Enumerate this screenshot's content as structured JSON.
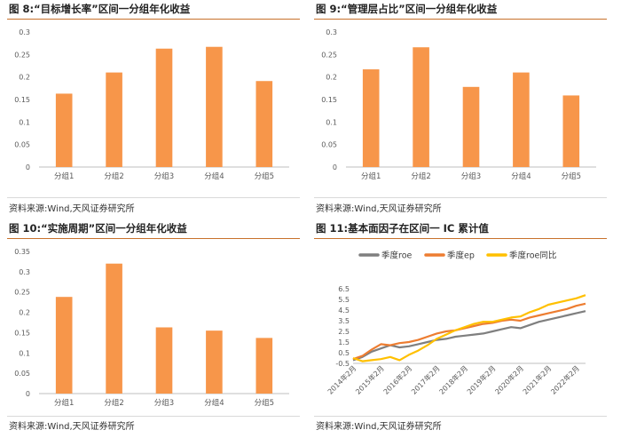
{
  "panels": [
    {
      "title": "图 8:“目标增长率”区间一分组年化收益",
      "source": "资料来源:Wind,天风证券研究所"
    },
    {
      "title": "图 9:“管理层占比”区间一分组年化收益",
      "source": "资料来源:Wind,天风证券研究所"
    },
    {
      "title": "图 10:“实施周期”区间一分组年化收益",
      "source": "资料来源:Wind,天风证券研究所"
    },
    {
      "title": "图 11:基本面因子在区间一 IC 累计值",
      "source": "资料来源:Wind,天风证券研究所"
    }
  ],
  "chart_data": [
    {
      "type": "bar",
      "categories": [
        "分组1",
        "分组2",
        "分组3",
        "分组4",
        "分组5"
      ],
      "values": [
        0.163,
        0.21,
        0.263,
        0.267,
        0.191
      ],
      "ylim": [
        0,
        0.3
      ],
      "yticks": [
        "0",
        "0.05",
        "0.1",
        "0.15",
        "0.2",
        "0.25",
        "0.3"
      ],
      "color": "#F7964A",
      "grid": false
    },
    {
      "type": "bar",
      "categories": [
        "分组1",
        "分组2",
        "分组3",
        "分组4",
        "分组5"
      ],
      "values": [
        0.217,
        0.266,
        0.178,
        0.21,
        0.159
      ],
      "ylim": [
        0,
        0.3
      ],
      "yticks": [
        "0",
        "0.05",
        "0.1",
        "0.15",
        "0.2",
        "0.25",
        "0.3"
      ],
      "color": "#F7964A",
      "grid": false
    },
    {
      "type": "bar",
      "categories": [
        "分组1",
        "分组2",
        "分组3",
        "分组4",
        "分组5"
      ],
      "values": [
        0.238,
        0.32,
        0.163,
        0.155,
        0.137
      ],
      "ylim": [
        0,
        0.35
      ],
      "yticks": [
        "0",
        "0.05",
        "0.1",
        "0.15",
        "0.2",
        "0.25",
        "0.3",
        "0.35"
      ],
      "color": "#F7964A",
      "grid": false
    },
    {
      "type": "line",
      "ylim": [
        -0.5,
        6.5
      ],
      "yticks": [
        "-0.5",
        "0.5",
        "1.5",
        "2.5",
        "3.5",
        "4.5",
        "5.5",
        "6.5"
      ],
      "xticks": [
        "2014年2月",
        "2015年2月",
        "2016年2月",
        "2017年2月",
        "2018年2月",
        "2019年2月",
        "2020年2月",
        "2021年2月",
        "2022年2月"
      ],
      "legend_position": "top",
      "grid": false,
      "series": [
        {
          "name": "季度roe",
          "color": "#7F7F7F",
          "x": [
            "2014-02",
            "2014-06",
            "2014-10",
            "2015-02",
            "2015-06",
            "2015-10",
            "2016-02",
            "2016-06",
            "2016-10",
            "2017-02",
            "2017-06",
            "2017-10",
            "2018-02",
            "2018-06",
            "2018-10",
            "2019-02",
            "2019-06",
            "2019-10",
            "2020-02",
            "2020-06",
            "2020-10",
            "2021-02",
            "2021-06",
            "2021-10",
            "2022-02",
            "2022-06"
          ],
          "values": [
            -0.2,
            0.1,
            0.6,
            0.9,
            1.2,
            1.0,
            1.1,
            1.3,
            1.5,
            1.7,
            1.8,
            2.0,
            2.1,
            2.2,
            2.3,
            2.5,
            2.7,
            2.9,
            2.8,
            3.1,
            3.4,
            3.6,
            3.8,
            4.0,
            4.2,
            4.4
          ]
        },
        {
          "name": "季度ep",
          "color": "#ED7D31",
          "x": [
            "2014-02",
            "2014-06",
            "2014-10",
            "2015-02",
            "2015-06",
            "2015-10",
            "2016-02",
            "2016-06",
            "2016-10",
            "2017-02",
            "2017-06",
            "2017-10",
            "2018-02",
            "2018-06",
            "2018-10",
            "2019-02",
            "2019-06",
            "2019-10",
            "2020-02",
            "2020-06",
            "2020-10",
            "2021-02",
            "2021-06",
            "2021-10",
            "2022-02",
            "2022-06"
          ],
          "values": [
            -0.1,
            0.2,
            0.8,
            1.3,
            1.2,
            1.4,
            1.5,
            1.7,
            2.0,
            2.3,
            2.5,
            2.6,
            2.8,
            3.0,
            3.2,
            3.3,
            3.5,
            3.6,
            3.5,
            3.8,
            4.0,
            4.2,
            4.4,
            4.6,
            4.9,
            5.1
          ]
        },
        {
          "name": "季度roe同比",
          "color": "#FFC000",
          "x": [
            "2014-02",
            "2014-06",
            "2014-10",
            "2015-02",
            "2015-06",
            "2015-10",
            "2016-02",
            "2016-06",
            "2016-10",
            "2017-02",
            "2017-06",
            "2017-10",
            "2018-02",
            "2018-06",
            "2018-10",
            "2019-02",
            "2019-06",
            "2019-10",
            "2020-02",
            "2020-06",
            "2020-10",
            "2021-02",
            "2021-06",
            "2021-10",
            "2022-02",
            "2022-06"
          ],
          "values": [
            0.0,
            -0.3,
            -0.2,
            -0.1,
            0.1,
            -0.2,
            0.3,
            0.7,
            1.2,
            1.8,
            2.2,
            2.6,
            2.9,
            3.2,
            3.4,
            3.4,
            3.6,
            3.8,
            3.9,
            4.3,
            4.6,
            5.0,
            5.2,
            5.4,
            5.6,
            5.9
          ]
        }
      ]
    }
  ]
}
